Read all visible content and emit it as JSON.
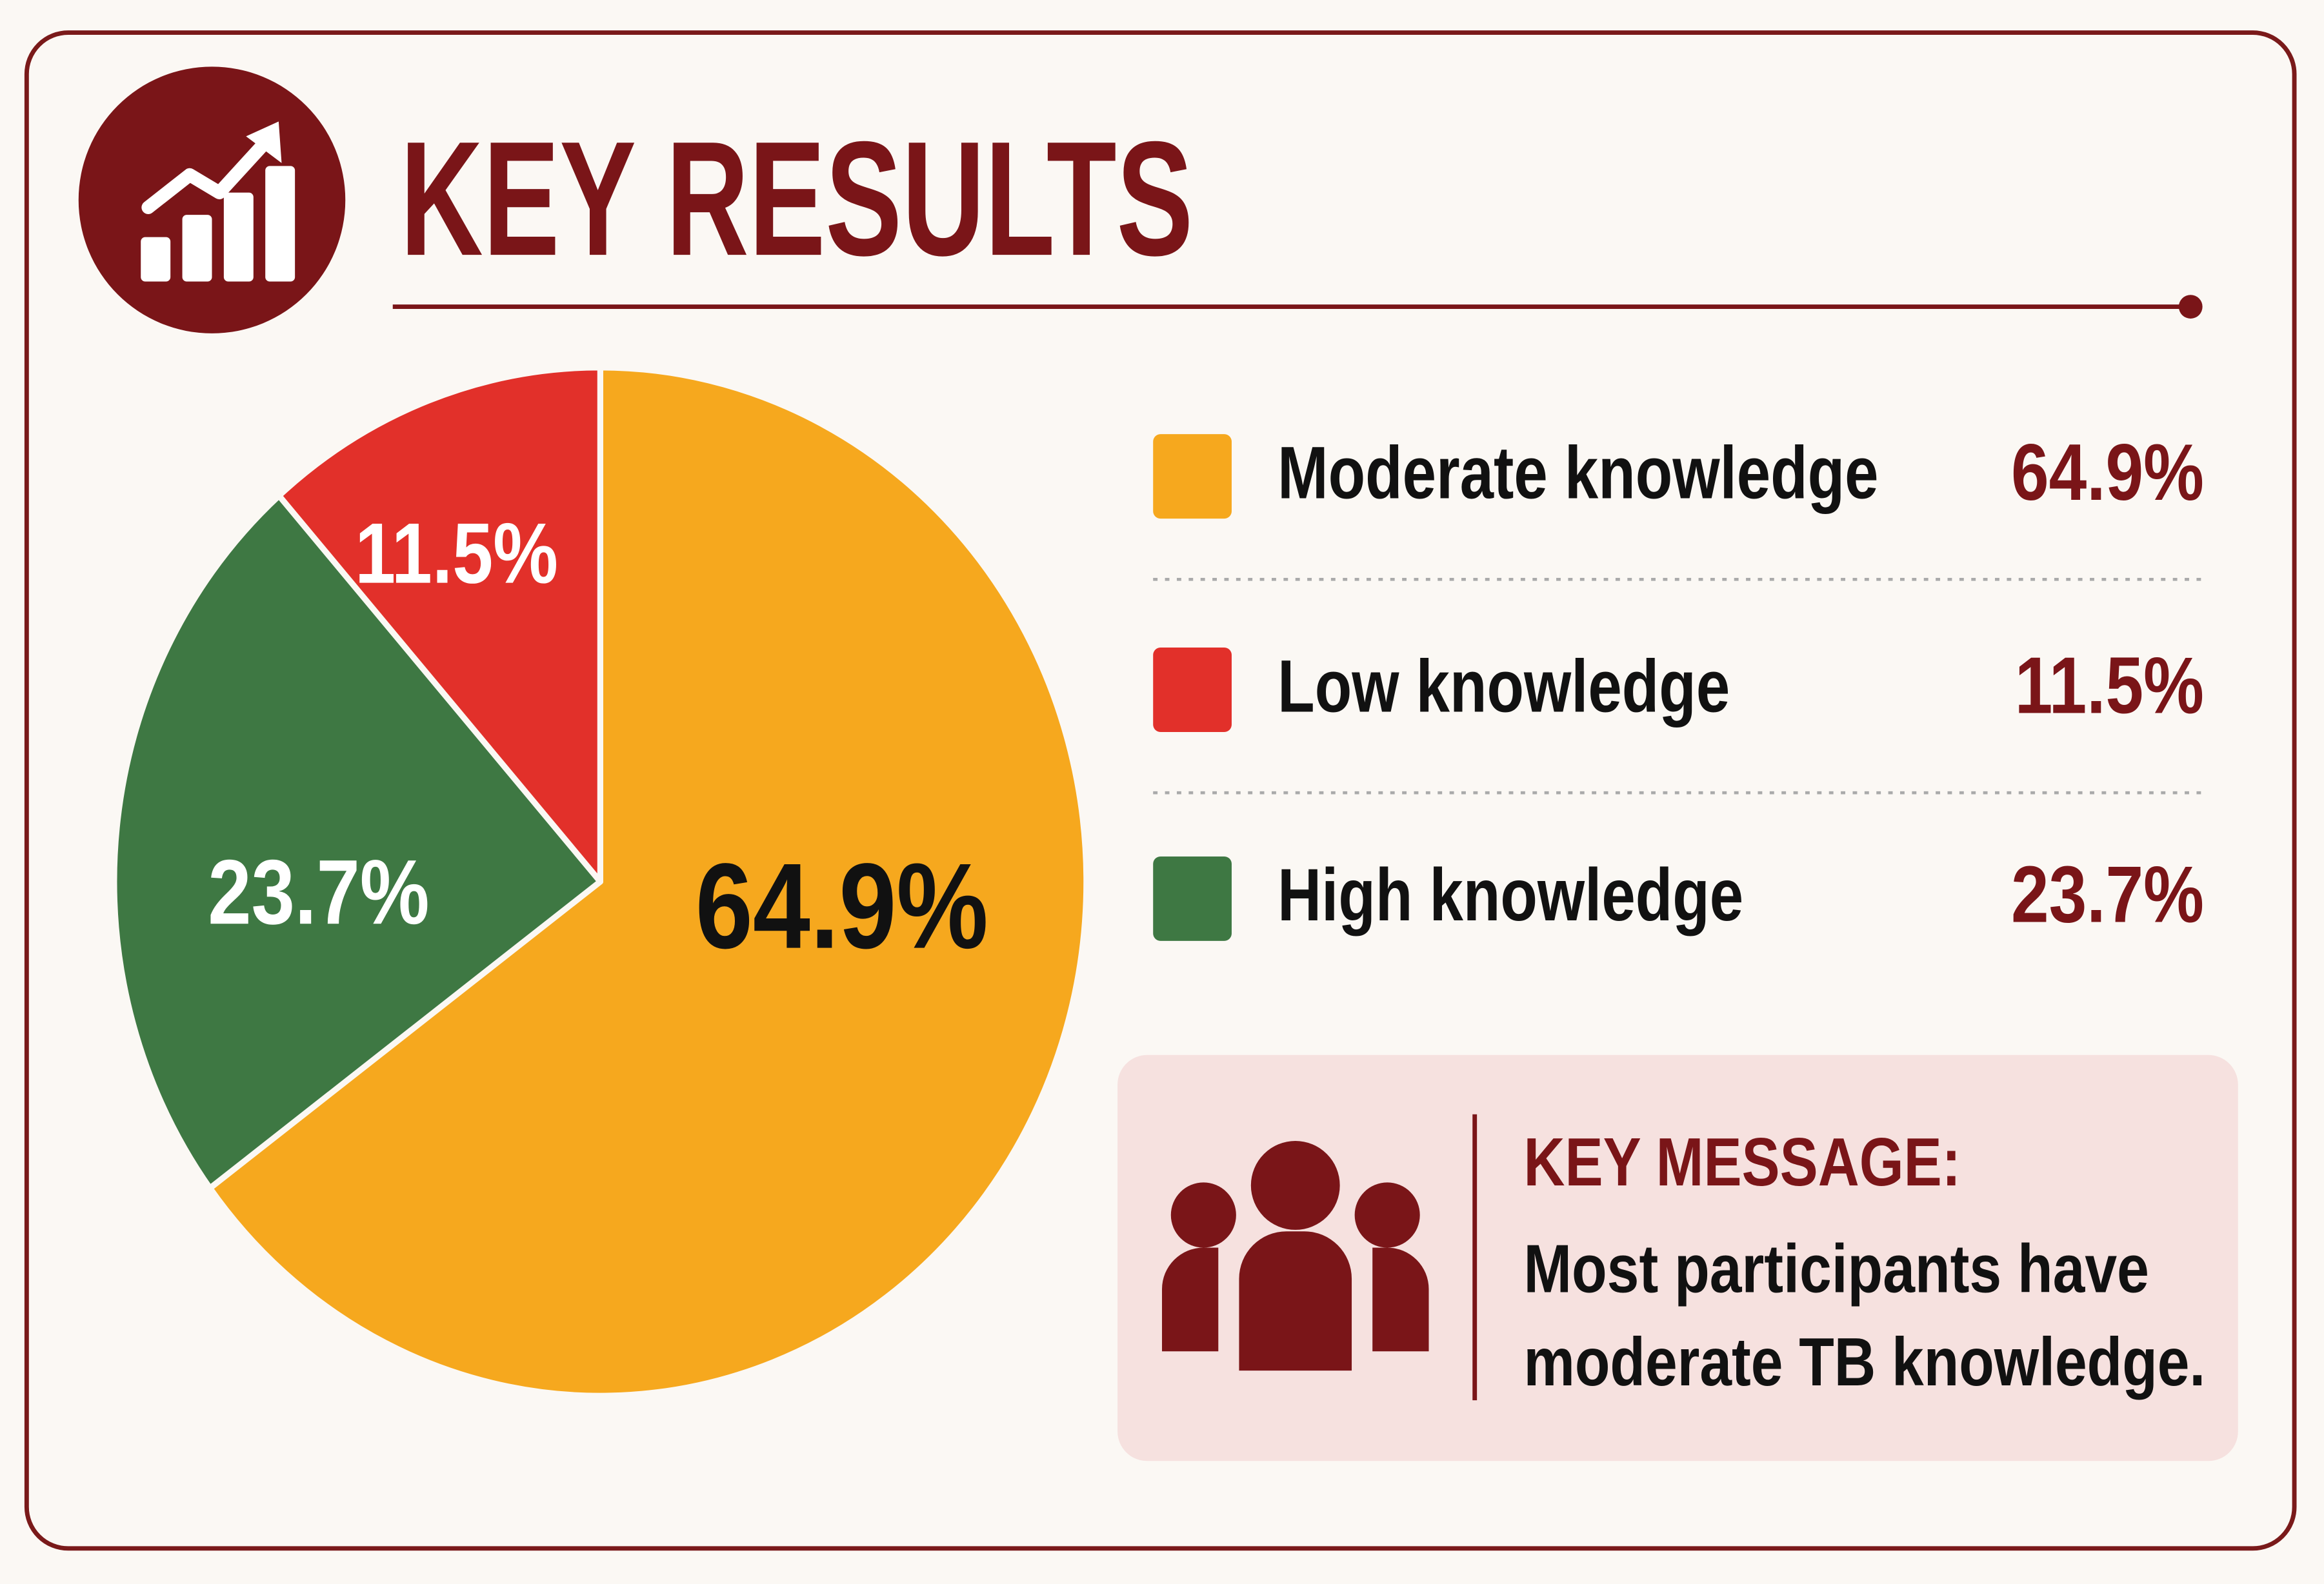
{
  "header": {
    "title": "KEY RESULTS"
  },
  "chart_data": {
    "type": "pie",
    "categories": [
      "Moderate knowledge",
      "High knowledge",
      "Low knowledge"
    ],
    "values": [
      64.9,
      23.7,
      11.5
    ],
    "value_labels": [
      "64.9%",
      "23.7%",
      "11.5%"
    ],
    "colors": [
      "#f6a81e",
      "#3e7843",
      "#e2302a"
    ]
  },
  "legend": {
    "items": [
      {
        "label": "Moderate knowledge",
        "value": "64.9%",
        "color": "#f6a81e"
      },
      {
        "label": "Low knowledge",
        "value": "11.5%",
        "color": "#e2302a"
      },
      {
        "label": "High knowledge",
        "value": "23.7%",
        "color": "#3e7843"
      }
    ]
  },
  "key_message": {
    "title": "KEY MESSAGE:",
    "lines": [
      "Most participants have",
      "moderate TB knowledge."
    ]
  }
}
